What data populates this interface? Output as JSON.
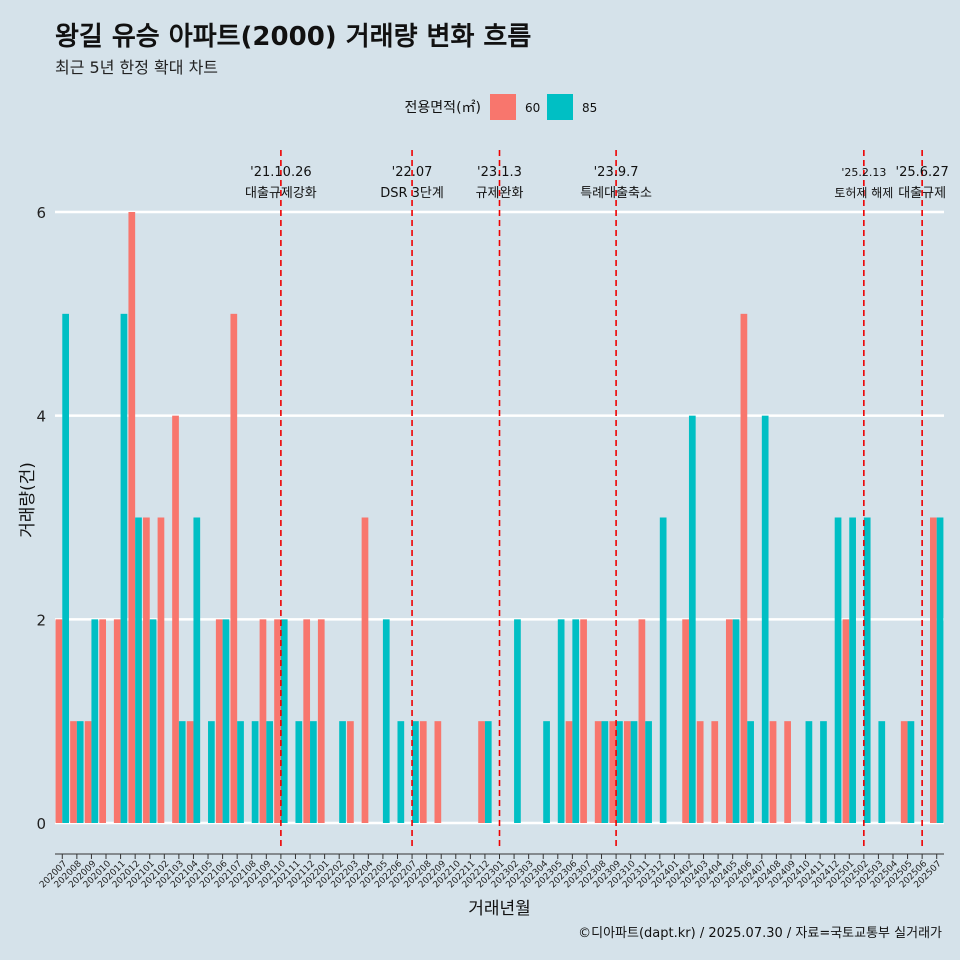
{
  "title": "왕길 유승 아파트(2000) 거래량 변화 흐름",
  "subtitle": "최근 5년 한정 확대 차트",
  "caption": "©디아파트(dapt.kr) / 2025.07.30 / 자료=국토교통부 실거래가",
  "chart_data": {
    "type": "bar",
    "xlabel": "거래년월",
    "ylabel": "거래량(건)",
    "ylim": [
      0,
      6
    ],
    "yticks": [
      0,
      2,
      4,
      6
    ],
    "grid": true,
    "legend": {
      "title": "전용면적(㎡)",
      "position": "top",
      "entries": [
        {
          "label": "60",
          "color": "#f8766d"
        },
        {
          "label": "85",
          "color": "#00bfc4"
        }
      ]
    },
    "categories": [
      "202007",
      "202008",
      "202009",
      "202010",
      "202011",
      "202012",
      "202101",
      "202102",
      "202103",
      "202104",
      "202105",
      "202106",
      "202107",
      "202108",
      "202109",
      "202110",
      "202111",
      "202112",
      "202201",
      "202202",
      "202203",
      "202204",
      "202205",
      "202206",
      "202207",
      "202208",
      "202209",
      "202210",
      "202211",
      "202212",
      "202301",
      "202302",
      "202303",
      "202304",
      "202305",
      "202306",
      "202307",
      "202308",
      "202309",
      "202310",
      "202311",
      "202312",
      "202401",
      "202402",
      "202403",
      "202404",
      "202405",
      "202406",
      "202407",
      "202408",
      "202409",
      "202410",
      "202411",
      "202412",
      "202501",
      "202502",
      "202503",
      "202504",
      "202505",
      "202506",
      "202507"
    ],
    "series": [
      {
        "name": "60",
        "color": "#f8766d",
        "values": [
          2,
          1,
          1,
          2,
          2,
          6,
          3,
          3,
          4,
          1,
          0,
          2,
          5,
          0,
          2,
          2,
          0,
          2,
          2,
          0,
          1,
          3,
          0,
          0,
          0,
          1,
          1,
          0,
          0,
          1,
          0,
          0,
          0,
          0,
          0,
          1,
          2,
          1,
          1,
          1,
          2,
          0,
          0,
          2,
          1,
          1,
          2,
          5,
          0,
          1,
          1,
          0,
          0,
          0,
          2,
          0,
          0,
          0,
          1,
          0,
          3
        ]
      },
      {
        "name": "85",
        "color": "#00bfc4",
        "values": [
          5,
          1,
          2,
          0,
          5,
          3,
          2,
          0,
          1,
          3,
          1,
          2,
          1,
          1,
          1,
          2,
          1,
          1,
          0,
          1,
          0,
          0,
          2,
          1,
          1,
          0,
          0,
          0,
          0,
          1,
          0,
          2,
          0,
          1,
          2,
          2,
          0,
          1,
          1,
          1,
          1,
          3,
          0,
          4,
          0,
          0,
          2,
          1,
          4,
          0,
          0,
          1,
          1,
          3,
          3,
          3,
          1,
          0,
          1,
          0,
          3
        ]
      }
    ],
    "annotations": [
      {
        "category": "202110",
        "date": "'21.10.26",
        "label": "대출규제강화"
      },
      {
        "category": "202207",
        "date": "'22.07",
        "label": "DSR 3단계"
      },
      {
        "category": "202301",
        "date": "'23.1.3",
        "label": "규제완화"
      },
      {
        "category": "202309",
        "date": "'23.9.7",
        "label": "특례대출축소"
      },
      {
        "category": "202502",
        "date": "'25.2.13",
        "label": "토허제 해제"
      },
      {
        "category": "202506",
        "date": "'25.6.27",
        "label": "대출규제"
      }
    ]
  }
}
